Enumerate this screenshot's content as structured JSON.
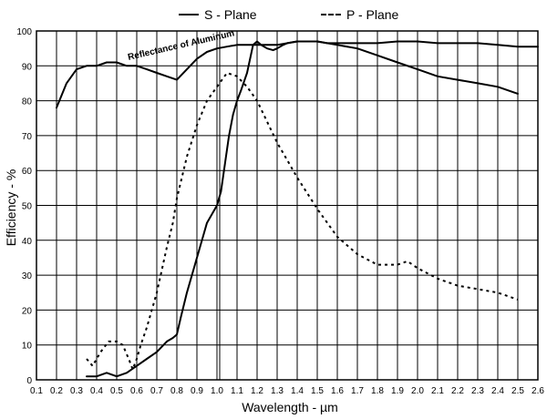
{
  "chart_data": {
    "type": "line",
    "xlabel": "Wavelength - µm",
    "ylabel": "Efficiency - %",
    "xlim": [
      0.1,
      2.6
    ],
    "ylim": [
      0,
      100
    ],
    "x_ticks": [
      "0.1",
      "0.2",
      "0.3",
      "0.4",
      "0.5",
      "0.6",
      "0.7",
      "0.8",
      "0.9",
      "1.0",
      "1.1",
      "1.2",
      "1.3",
      "1.4",
      "1.5",
      "1.6",
      "1.7",
      "1.8",
      "1.9",
      "2.0",
      "2.1",
      "2.2",
      "2.3",
      "2.4",
      "2.5",
      "2.6"
    ],
    "y_ticks": [
      "0",
      "10",
      "20",
      "30",
      "40",
      "50",
      "60",
      "70",
      "80",
      "90",
      "100"
    ],
    "grid": true,
    "legend_position": "top-center",
    "vertical_marker_x": 1.0,
    "annotation": {
      "text": "Reflectance of Aluminum"
    },
    "series": [
      {
        "name": "S - Plane",
        "style": "solid",
        "x": [
          0.35,
          0.4,
          0.45,
          0.5,
          0.55,
          0.6,
          0.65,
          0.7,
          0.75,
          0.78,
          0.8,
          0.82,
          0.85,
          0.9,
          0.95,
          1.0,
          1.02,
          1.04,
          1.06,
          1.08,
          1.1,
          1.12,
          1.15,
          1.18,
          1.2,
          1.22,
          1.25,
          1.28,
          1.3,
          1.33,
          1.35,
          1.4,
          1.45,
          1.5,
          1.55,
          1.6,
          1.7,
          1.8,
          1.9,
          2.0,
          2.1,
          2.2,
          2.3,
          2.4,
          2.5,
          2.6
        ],
        "values": [
          1,
          1,
          2,
          1,
          2,
          4,
          6,
          8,
          11,
          12,
          13,
          18,
          25,
          35,
          45,
          50,
          54,
          62,
          70,
          76,
          80,
          83,
          88,
          96,
          97,
          96,
          95,
          94.5,
          95,
          96,
          96.5,
          97,
          97,
          97,
          96.5,
          96.5,
          96.5,
          96.5,
          97,
          97,
          96.5,
          96.5,
          96.5,
          96,
          95.5,
          95.5
        ]
      },
      {
        "name": "P - Plane",
        "style": "dashed",
        "x": [
          0.35,
          0.38,
          0.42,
          0.46,
          0.5,
          0.53,
          0.56,
          0.58,
          0.6,
          0.62,
          0.65,
          0.7,
          0.75,
          0.78,
          0.8,
          0.85,
          0.9,
          0.95,
          1.0,
          1.05,
          1.1,
          1.15,
          1.2,
          1.25,
          1.3,
          1.35,
          1.4,
          1.5,
          1.6,
          1.7,
          1.8,
          1.9,
          1.95,
          2.0,
          2.1,
          2.2,
          2.3,
          2.4,
          2.5
        ],
        "values": [
          6,
          4,
          8,
          11,
          11,
          10,
          6,
          3,
          6,
          10,
          15,
          25,
          38,
          45,
          52,
          64,
          73,
          80,
          84,
          88,
          87,
          84,
          80,
          74,
          68,
          63,
          58,
          49,
          41,
          36,
          33,
          33,
          34,
          32,
          29,
          27,
          26,
          25,
          23
        ]
      },
      {
        "name": "Reflectance of Aluminum",
        "style": "solid",
        "x": [
          0.2,
          0.25,
          0.3,
          0.35,
          0.4,
          0.45,
          0.5,
          0.55,
          0.6,
          0.65,
          0.7,
          0.75,
          0.8,
          0.85,
          0.9,
          0.95,
          1.0,
          1.05,
          1.1,
          1.2,
          1.3,
          1.4,
          1.5,
          1.6,
          1.7,
          1.8,
          1.9,
          2.0,
          2.1,
          2.2,
          2.3,
          2.4,
          2.5
        ],
        "values": [
          78,
          85,
          89,
          90,
          90,
          91,
          91,
          90,
          90,
          89,
          88,
          87,
          86,
          89,
          92,
          94,
          95,
          95.5,
          96,
          96,
          96,
          97,
          97,
          96,
          95,
          93,
          91,
          89,
          87,
          86,
          85,
          84,
          82
        ]
      }
    ]
  }
}
